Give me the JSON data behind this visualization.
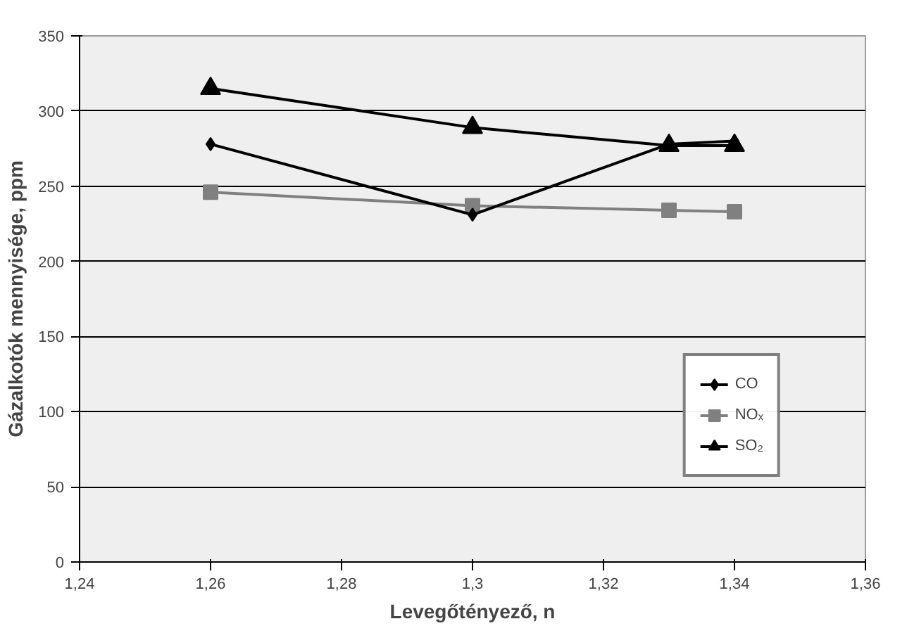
{
  "chart_data": {
    "type": "line",
    "xlabel": "Levegőtényező, n",
    "ylabel": "Gázalkotók mennyisége, ppm",
    "x": [
      1.26,
      1.3,
      1.33,
      1.34
    ],
    "series": [
      {
        "name": "CO",
        "color": "#000000",
        "values": [
          278,
          231,
          278,
          280
        ],
        "marker": "diamond"
      },
      {
        "name": "NOₓ",
        "color": "#808080",
        "values": [
          246,
          237,
          234,
          233
        ],
        "marker": "square"
      },
      {
        "name": "SO₂",
        "color": "#000000",
        "values": [
          315,
          289,
          277,
          277
        ],
        "marker": "triangle"
      }
    ],
    "xlim": [
      1.24,
      1.36
    ],
    "xticks": [
      {
        "value": 1.24,
        "label": "1,24"
      },
      {
        "value": 1.26,
        "label": "1,26"
      },
      {
        "value": 1.28,
        "label": "1,28"
      },
      {
        "value": 1.3,
        "label": "1,3"
      },
      {
        "value": 1.32,
        "label": "1,32"
      },
      {
        "value": 1.34,
        "label": "1,34"
      },
      {
        "value": 1.36,
        "label": "1,36"
      }
    ],
    "ylim": [
      0,
      350
    ],
    "yticks": [
      0,
      50,
      100,
      150,
      200,
      250,
      300,
      350
    ],
    "grid": "y",
    "legend": "bottom right",
    "line_style": "solid"
  }
}
